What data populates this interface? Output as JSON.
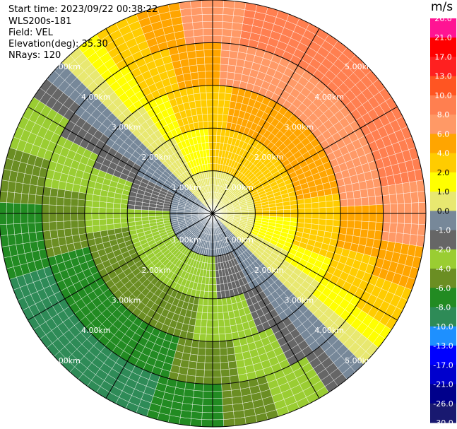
{
  "header": {
    "start_time": "Start time: 2023/09/22 00:38:22",
    "instrument": "WLS200s-181",
    "field": "Field: VEL",
    "elevation": "Elevation(deg): 35.30",
    "nrays": "NRays: 120"
  },
  "colorbar": {
    "unit": "m/s",
    "ticks": [
      "26.0",
      "21.0",
      "17.0",
      "13.0",
      "10.0",
      "8.0",
      "6.0",
      "4.0",
      "2.0",
      "1.0",
      "0.0",
      "-1.0",
      "-2.0",
      "-4.0",
      "-6.0",
      "-8.0",
      "-10.0",
      "-13.0",
      "-17.0",
      "-21.0",
      "-26.0",
      "-30.0"
    ],
    "colors": [
      "#ff66cc",
      "#ff1493",
      "#ff0000",
      "#ff2020",
      "#ff5522",
      "#ff7f50",
      "#ff9966",
      "#ffa500",
      "#ffcc00",
      "#ffff00",
      "#e8e870",
      "#778899",
      "#666666",
      "#9acd32",
      "#6b8e23",
      "#228b22",
      "#2e8b57",
      "#1e90ff",
      "#0000ff",
      "#0000cd",
      "#00008b",
      "#191970",
      "#000080"
    ]
  },
  "chart_data": {
    "type": "heatmap",
    "projection": "polar (PPI)",
    "field": "VEL",
    "units": "m/s",
    "nrays": 120,
    "range_rings_km": [
      1,
      2,
      3,
      4,
      5
    ],
    "ring_labels": [
      "1.00km",
      "2.00km",
      "3.00km",
      "4.00km",
      "5.00km"
    ],
    "max_range_km": 5.0,
    "spoke_angles_deg": [
      0,
      30,
      60,
      90,
      120,
      150,
      180,
      210,
      240,
      270,
      300,
      330
    ],
    "pattern": {
      "description": "Velocity field: positive (toward NE/E) and negative (toward SW/W)",
      "ring_bands": [
        {
          "range_km": [
            0.0,
            1.0
          ],
          "ne": 1.0,
          "sw": -1.0
        },
        {
          "range_km": [
            1.0,
            2.0
          ],
          "ne": 3.0,
          "sw": -3.0
        },
        {
          "range_km": [
            2.0,
            3.0
          ],
          "ne": 5.0,
          "sw": -5.0
        },
        {
          "range_km": [
            3.0,
            4.0
          ],
          "ne": 8.0,
          "sw": -7.0
        },
        {
          "range_km": [
            4.0,
            5.0
          ],
          "ne": 10.0,
          "sw": -9.0
        }
      ]
    }
  }
}
